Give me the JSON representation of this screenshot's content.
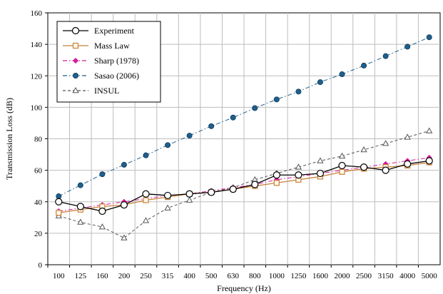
{
  "chart_data": {
    "type": "line",
    "xlabel": "Frequency (Hz)",
    "ylabel": "Transmission Loss (dB)",
    "ylim": [
      0,
      160
    ],
    "yticks": [
      "0",
      "20",
      "40",
      "60",
      "80",
      "100",
      "120",
      "140",
      "160"
    ],
    "categories": [
      "100",
      "125",
      "160",
      "200",
      "250",
      "315",
      "400",
      "500",
      "630",
      "800",
      "1000",
      "1250",
      "1600",
      "2000",
      "2500",
      "3150",
      "4000",
      "5000"
    ],
    "grid": true,
    "legend_position": "top-left",
    "series": [
      {
        "name": "Experiment",
        "color": "#000000",
        "marker": "circle-open",
        "dash": "solid",
        "values": [
          40,
          37,
          34,
          38,
          45,
          44,
          45,
          46,
          48,
          51,
          57,
          57,
          58,
          63,
          62,
          60,
          64,
          66
        ]
      },
      {
        "name": "Mass Law",
        "color": "#c8823c",
        "marker": "square-open",
        "dash": "solid",
        "values": [
          33,
          35,
          37,
          38,
          41,
          43,
          45,
          46,
          48,
          50,
          52,
          54,
          56,
          59,
          61,
          62,
          63,
          65
        ]
      },
      {
        "name": "Sharp (1978)",
        "color": "#d81b9a",
        "marker": "diamond-filled",
        "dash": "dash-dot",
        "values": [
          34,
          36,
          38,
          40,
          42,
          44,
          45,
          47,
          49,
          51,
          54,
          56,
          58,
          60,
          62,
          64,
          66,
          68
        ]
      },
      {
        "name": "Sasao (2006)",
        "color": "#1f5f8b",
        "marker": "circle-filled",
        "dash": "dash-dot",
        "values": [
          43.5,
          50.5,
          57.5,
          63.5,
          69.5,
          76,
          82,
          88,
          93.5,
          99.5,
          105,
          110,
          116,
          121,
          126.5,
          132.5,
          138.5,
          144.5
        ]
      },
      {
        "name": "INSUL",
        "color": "#555555",
        "marker": "triangle-open",
        "dash": "dash",
        "values": [
          31,
          27,
          24,
          17,
          28,
          36,
          41,
          46,
          49,
          54,
          58,
          62,
          66,
          69,
          73,
          77,
          81,
          85
        ]
      }
    ]
  }
}
